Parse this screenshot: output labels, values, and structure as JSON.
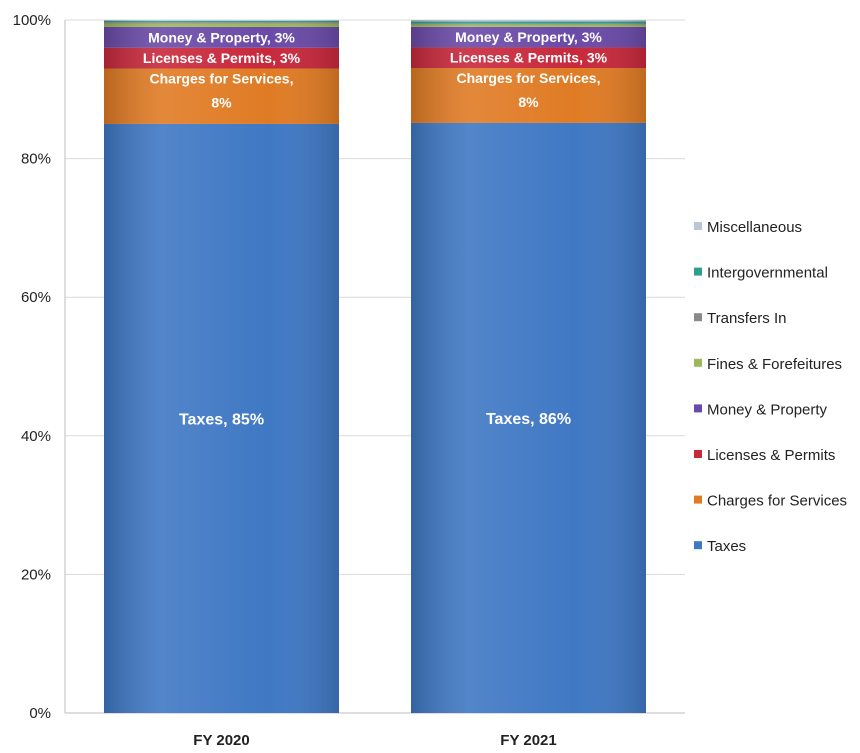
{
  "chart_data": {
    "type": "bar",
    "stacked": true,
    "normalized": true,
    "categories": [
      "FY 2020",
      "FY 2021"
    ],
    "ylim": [
      0,
      100
    ],
    "yticks": [
      "0%",
      "20%",
      "40%",
      "60%",
      "80%",
      "100%"
    ],
    "grid": true,
    "legend_position": "right",
    "series": [
      {
        "name": "Taxes",
        "color": "#3f78c4",
        "values": [
          85,
          86
        ],
        "labels": [
          "Taxes, 85%",
          "Taxes, 86%"
        ]
      },
      {
        "name": "Charges for Services",
        "color": "#e07b24",
        "values": [
          8,
          8
        ],
        "labels": [
          "Charges for Services, 8%",
          "Charges for Services, 8%"
        ]
      },
      {
        "name": "Licenses & Permits",
        "color": "#c8283c",
        "values": [
          3,
          3
        ],
        "labels": [
          "Licenses & Permits, 3%",
          "Licenses & Permits, 3%"
        ]
      },
      {
        "name": "Money & Property",
        "color": "#6a4aa8",
        "values": [
          3,
          3
        ],
        "labels": [
          "Money & Property, 3%",
          "Money & Property, 3%"
        ]
      },
      {
        "name": "Fines & Forefeitures",
        "color": "#9bb85a",
        "values": [
          0.5,
          0.4
        ],
        "labels": [
          "",
          ""
        ]
      },
      {
        "name": "Transfers In",
        "color": "#8a8a8a",
        "values": [
          0.2,
          0.1
        ],
        "labels": [
          "",
          ""
        ]
      },
      {
        "name": "Intergovernmental",
        "color": "#2e9f8f",
        "values": [
          0.2,
          0.3
        ],
        "labels": [
          "",
          ""
        ]
      },
      {
        "name": "Miscellaneous",
        "color": "#b8c8d8",
        "values": [
          0.1,
          0.2
        ],
        "labels": [
          "",
          ""
        ]
      }
    ]
  }
}
